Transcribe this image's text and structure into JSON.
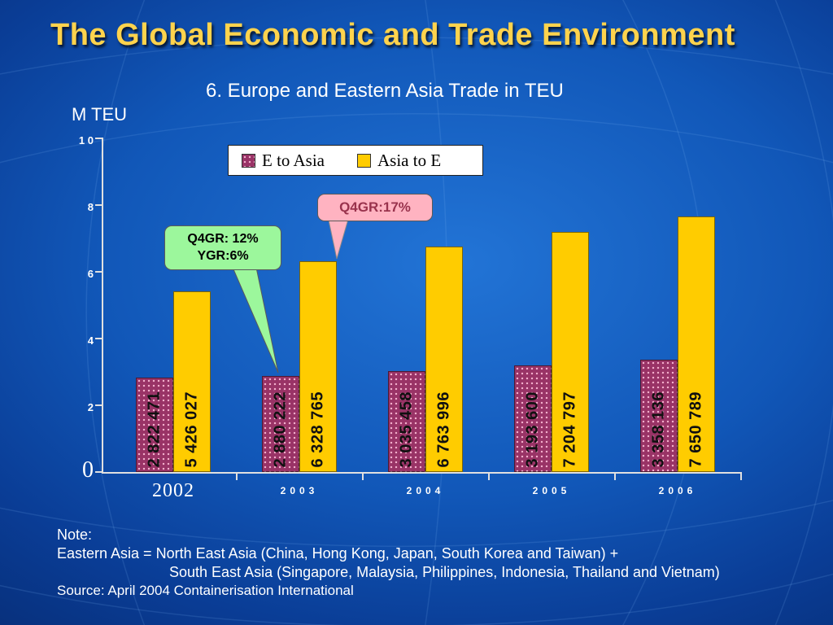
{
  "slide": {
    "title": "The Global Economic and Trade Environment",
    "subtitle": "6. Europe and Eastern Asia Trade in TEU",
    "axis_label": "M TEU"
  },
  "colors": {
    "title_text": "#ffd34d",
    "background": "#1157b8",
    "body_text": "#ffffff"
  },
  "annotations": {
    "green_callout": {
      "line1": "Q4GR: 12%",
      "line2": "YGR:6%",
      "color": "#9cf79c",
      "text_color": "#000000"
    },
    "pink_callout": {
      "text": "Q4GR:17%",
      "color": "#ffb3c1",
      "text_color": "#99334d"
    }
  },
  "notes": {
    "line1": "Note:",
    "line2": "Eastern Asia = North East Asia (China, Hong Kong, Japan, South Korea and Taiwan) +",
    "line3": "South East Asia (Singapore, Malaysia, Philippines, Indonesia, Thailand and Vietnam)"
  },
  "source": "Source: April 2004 Containerisation International",
  "chart_data": {
    "type": "bar",
    "title": "6. Europe and Eastern Asia Trade in TEU",
    "categories": [
      "2002",
      "2003",
      "2004",
      "2005",
      "2006"
    ],
    "series": [
      {
        "name": "E to Asia",
        "color": "#993366",
        "values": [
          2822471,
          2880222,
          3035458,
          3193600,
          3358136
        ],
        "labels": [
          "2 822 471",
          "2 880 222",
          "3 035 458",
          "3 193 600",
          "3 358 136"
        ]
      },
      {
        "name": "Asia to E",
        "color": "#FFCC00",
        "values": [
          5426027,
          6328765,
          6763996,
          7204797,
          7650789
        ],
        "labels": [
          "5 426 027",
          "6 328 765",
          "6 763 996",
          "7 204 797",
          "7 650 789"
        ]
      }
    ],
    "unit": "TEU",
    "xlabel": "",
    "ylabel": "M TEU",
    "ylim": [
      0,
      10
    ],
    "yticks": [
      0,
      2,
      4,
      6,
      8,
      10
    ],
    "ytick_labels": [
      "0",
      "2",
      "4",
      "6",
      "8",
      "1 0"
    ],
    "grid": false,
    "legend_position": "top",
    "annotations": [
      {
        "target": "E to Asia 2003",
        "text": "Q4GR: 12% YGR:6%"
      },
      {
        "target": "Asia to E 2003",
        "text": "Q4GR:17%"
      }
    ]
  }
}
